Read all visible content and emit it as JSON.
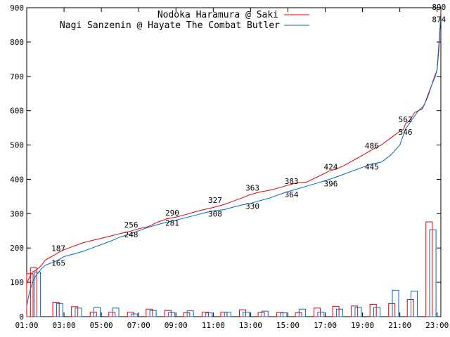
{
  "chart_data": {
    "type": "line",
    "title": "",
    "xlabel": "",
    "ylabel": "",
    "ylim": [
      0,
      900
    ],
    "yticks": [
      0,
      100,
      200,
      300,
      400,
      500,
      600,
      700,
      800,
      900
    ],
    "xticks": [
      "01:00",
      "03:00",
      "05:00",
      "07:00",
      "09:00",
      "11:00",
      "13:00",
      "15:00",
      "17:00",
      "19:00",
      "21:00",
      "23:00"
    ],
    "xlim_hours": [
      1,
      23.2
    ],
    "grid": false,
    "legend_position": "top-right",
    "series": [
      {
        "name": "Nodoka Haramura @ Saki",
        "color": "#dd0000",
        "cumulative": [
          [
            1.0,
            95
          ],
          [
            1.1,
            110
          ],
          [
            1.3,
            130
          ],
          [
            1.5,
            135
          ],
          [
            1.8,
            150
          ],
          [
            2.0,
            165
          ],
          [
            2.5,
            180
          ],
          [
            2.7,
            187
          ],
          [
            3.0,
            195
          ],
          [
            3.5,
            205
          ],
          [
            4.0,
            215
          ],
          [
            4.5,
            222
          ],
          [
            5.0,
            228
          ],
          [
            5.5,
            235
          ],
          [
            6.0,
            242
          ],
          [
            6.5,
            248
          ],
          [
            7.0,
            256
          ],
          [
            7.5,
            262
          ],
          [
            8.0,
            275
          ],
          [
            8.5,
            285
          ],
          [
            9.0,
            290
          ],
          [
            9.5,
            297
          ],
          [
            10.0,
            305
          ],
          [
            10.5,
            312
          ],
          [
            11.0,
            318
          ],
          [
            11.6,
            327
          ],
          [
            12.0,
            335
          ],
          [
            12.5,
            345
          ],
          [
            13.0,
            356
          ],
          [
            13.5,
            363
          ],
          [
            14.0,
            368
          ],
          [
            14.5,
            375
          ],
          [
            15.0,
            383
          ],
          [
            15.5,
            390
          ],
          [
            16.0,
            392
          ],
          [
            16.5,
            405
          ],
          [
            17.0,
            418
          ],
          [
            17.2,
            424
          ],
          [
            17.6,
            430
          ],
          [
            18.0,
            440
          ],
          [
            18.5,
            455
          ],
          [
            19.0,
            470
          ],
          [
            19.5,
            486
          ],
          [
            20.0,
            500
          ],
          [
            20.5,
            520
          ],
          [
            21.0,
            540
          ],
          [
            21.2,
            545
          ],
          [
            21.3,
            562
          ],
          [
            21.5,
            570
          ],
          [
            21.8,
            595
          ],
          [
            22.0,
            600
          ],
          [
            22.2,
            605
          ],
          [
            22.5,
            640
          ],
          [
            22.8,
            690
          ],
          [
            23.0,
            720
          ],
          [
            23.1,
            780
          ],
          [
            23.2,
            890
          ]
        ],
        "labels": [
          [
            2.7,
            187
          ],
          [
            6.6,
            256
          ],
          [
            8.8,
            290
          ],
          [
            11.1,
            327
          ],
          [
            13.1,
            363
          ],
          [
            15.2,
            383
          ],
          [
            17.3,
            424
          ],
          [
            19.5,
            486
          ],
          [
            21.3,
            562
          ],
          [
            23.1,
            890
          ]
        ],
        "bars": [
          [
            1.0,
            125
          ],
          [
            1.2,
            142
          ],
          [
            2.4,
            42
          ],
          [
            3.4,
            29
          ],
          [
            4.4,
            13
          ],
          [
            5.4,
            13
          ],
          [
            6.4,
            13
          ],
          [
            7.4,
            22
          ],
          [
            8.4,
            18
          ],
          [
            9.4,
            11
          ],
          [
            10.4,
            13
          ],
          [
            11.4,
            13
          ],
          [
            12.4,
            20
          ],
          [
            13.4,
            12
          ],
          [
            14.4,
            12
          ],
          [
            15.4,
            11
          ],
          [
            16.4,
            25
          ],
          [
            17.4,
            30
          ],
          [
            18.4,
            31
          ],
          [
            19.4,
            36
          ],
          [
            20.4,
            38
          ],
          [
            21.4,
            50
          ],
          [
            22.4,
            276
          ]
        ]
      },
      {
        "name": "Nagi Sanzenin @ Hayate The Combat Butler",
        "color": "#0066cc",
        "cumulative": [
          [
            1.0,
            30
          ],
          [
            1.1,
            60
          ],
          [
            1.3,
            100
          ],
          [
            1.5,
            120
          ],
          [
            1.8,
            140
          ],
          [
            2.0,
            150
          ],
          [
            2.5,
            160
          ],
          [
            2.7,
            165
          ],
          [
            3.0,
            175
          ],
          [
            3.5,
            182
          ],
          [
            4.0,
            190
          ],
          [
            4.5,
            200
          ],
          [
            5.0,
            210
          ],
          [
            5.5,
            220
          ],
          [
            6.0,
            232
          ],
          [
            6.5,
            240
          ],
          [
            7.0,
            250
          ],
          [
            7.5,
            260
          ],
          [
            8.0,
            268
          ],
          [
            8.5,
            275
          ],
          [
            9.0,
            281
          ],
          [
            9.5,
            288
          ],
          [
            10.0,
            295
          ],
          [
            10.5,
            302
          ],
          [
            11.0,
            308
          ],
          [
            11.6,
            312
          ],
          [
            12.0,
            318
          ],
          [
            12.5,
            325
          ],
          [
            13.0,
            330
          ],
          [
            13.5,
            338
          ],
          [
            14.0,
            345
          ],
          [
            14.5,
            355
          ],
          [
            15.0,
            364
          ],
          [
            15.5,
            372
          ],
          [
            16.0,
            380
          ],
          [
            16.5,
            388
          ],
          [
            17.0,
            396
          ],
          [
            17.5,
            405
          ],
          [
            18.0,
            415
          ],
          [
            18.5,
            425
          ],
          [
            19.0,
            435
          ],
          [
            19.5,
            445
          ],
          [
            20.0,
            450
          ],
          [
            20.5,
            470
          ],
          [
            21.0,
            500
          ],
          [
            21.3,
            546
          ],
          [
            21.6,
            570
          ],
          [
            22.0,
            600
          ],
          [
            22.3,
            615
          ],
          [
            22.6,
            660
          ],
          [
            22.9,
            700
          ],
          [
            23.0,
            720
          ],
          [
            23.1,
            800
          ],
          [
            23.2,
            874
          ]
        ],
        "labels": [
          [
            2.7,
            165
          ],
          [
            6.6,
            248
          ],
          [
            8.8,
            281
          ],
          [
            11.1,
            308
          ],
          [
            13.1,
            330
          ],
          [
            15.2,
            364
          ],
          [
            17.3,
            396
          ],
          [
            19.5,
            445
          ],
          [
            21.3,
            546
          ],
          [
            23.1,
            874
          ]
        ],
        "bars": [
          [
            1.4,
            130
          ],
          [
            2.6,
            38
          ],
          [
            3.6,
            25
          ],
          [
            4.6,
            27
          ],
          [
            5.6,
            25
          ],
          [
            6.6,
            8
          ],
          [
            7.6,
            18
          ],
          [
            8.6,
            12
          ],
          [
            9.6,
            17
          ],
          [
            10.6,
            11
          ],
          [
            11.6,
            13
          ],
          [
            12.6,
            13
          ],
          [
            13.6,
            16
          ],
          [
            14.6,
            11
          ],
          [
            15.6,
            22
          ],
          [
            16.6,
            13
          ],
          [
            17.6,
            22
          ],
          [
            18.6,
            27
          ],
          [
            19.6,
            27
          ],
          [
            20.6,
            77
          ],
          [
            21.6,
            74
          ],
          [
            22.6,
            253
          ]
        ]
      }
    ]
  }
}
